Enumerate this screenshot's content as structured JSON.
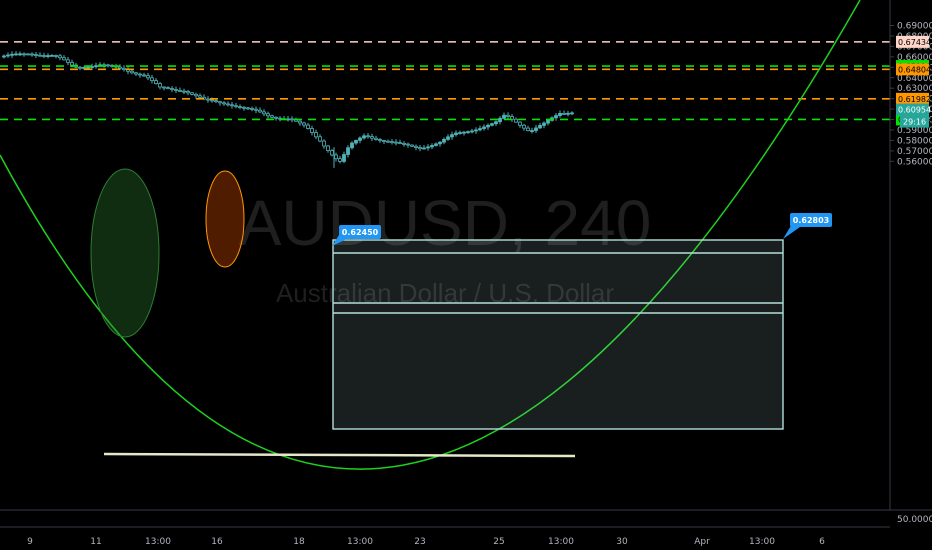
{
  "chart_data": {
    "type": "candlestick",
    "symbol": "AUDUSD",
    "interval": "240",
    "subtitle": "Australian Dollar / U.S. Dollar",
    "grid": false,
    "y_range": [
      0.552,
      0.695
    ],
    "y_ticks": [
      "0.69000",
      "0.68000",
      "0.67000",
      "0.66000",
      "0.65000",
      "0.64000",
      "0.63000",
      "0.62000",
      "0.61000",
      "0.60000",
      "0.59000",
      "0.58000",
      "0.57000",
      "0.56000"
    ],
    "y_bottom_label": "50.00000",
    "x_ticks": [
      "9",
      "11",
      "13:00",
      "16",
      "18",
      "13:00",
      "23",
      "25",
      "13:00",
      "30",
      "Apr",
      "13:00",
      "6"
    ],
    "last_price": "0.60954",
    "countdown": "29:16",
    "levels": [
      {
        "value": 0.67434,
        "label": "0.67434",
        "color": "#ffd5c8",
        "style": "dashed"
      },
      {
        "value": 0.6512,
        "label": "0.65120",
        "color": "#00e600",
        "style": "dashed"
      },
      {
        "value": 0.64804,
        "label": "0.64804",
        "color": "#ff9800",
        "style": "dashed"
      },
      {
        "value": 0.61982,
        "label": "0.61982",
        "color": "#ff9800",
        "style": "dashed"
      },
      {
        "value": 0.60015,
        "label": "0.60015",
        "color": "#00e600",
        "style": "dashed"
      }
    ],
    "callouts": [
      {
        "label": "0.62450",
        "value": 0.6245
      },
      {
        "label": "0.62803",
        "value": 0.62803
      }
    ],
    "candle_color": "#4fb3b8",
    "accent_color": "#2196f3"
  }
}
